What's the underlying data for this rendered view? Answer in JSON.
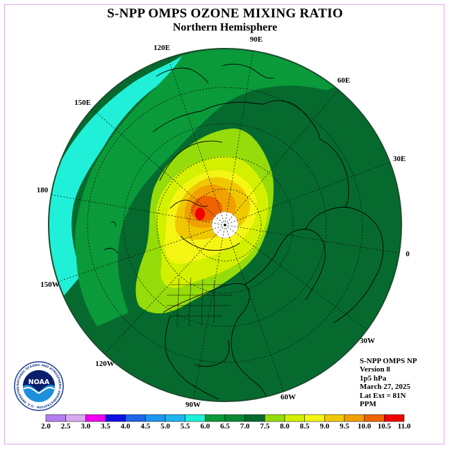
{
  "header": {
    "title": "S-NPP OMPS OZONE MIXING RATIO",
    "subtitle": "Northern Hemisphere"
  },
  "longitude_labels": [
    {
      "id": "lon-90e",
      "text": "90E"
    },
    {
      "id": "lon-60e",
      "text": "60E"
    },
    {
      "id": "lon-30e",
      "text": "30E"
    },
    {
      "id": "lon-0",
      "text": "0"
    },
    {
      "id": "lon-30w",
      "text": "30W"
    },
    {
      "id": "lon-60w",
      "text": "60W"
    },
    {
      "id": "lon-90w",
      "text": "90W"
    },
    {
      "id": "lon-120w",
      "text": "120W"
    },
    {
      "id": "lon-150w",
      "text": "150W"
    },
    {
      "id": "lon-180",
      "text": "180"
    },
    {
      "id": "lon-150e",
      "text": "150E"
    },
    {
      "id": "lon-120e",
      "text": "120E"
    }
  ],
  "info": {
    "instrument": "S-NPP OMPS NP",
    "version": "Version 8",
    "level": "1p5 hPa",
    "date": "March 27, 2025",
    "lat_ext": "Lat Ext = 81N",
    "units": "PPM"
  },
  "legend": {
    "ticks": [
      "2.0",
      "2.5",
      "3.0",
      "3.5",
      "4.0",
      "4.5",
      "5.0",
      "5.5",
      "6.0",
      "6.5",
      "7.0",
      "7.5",
      "8.0",
      "8.5",
      "9.0",
      "9.5",
      "10.0",
      "10.5",
      "11.0"
    ],
    "colors": [
      "#b57ef0",
      "#d8a8f0",
      "#f000f0",
      "#1010e0",
      "#1e64e6",
      "#1e96f0",
      "#20b4f0",
      "#20f0d8",
      "#0a9a3a",
      "#088a36",
      "#066a2e",
      "#96dc0a",
      "#d2f000",
      "#f5f514",
      "#f0c800",
      "#f0a000",
      "#f06400",
      "#f00000",
      "#8b5a3c"
    ]
  },
  "logo": {
    "name": "NOAA",
    "ring_text": "NATIONAL OCEANIC AND ATMOSPHERIC ADMINISTRATION · U.S. DEPARTMENT OF COMMERCE"
  },
  "map_colors": {
    "ocean_edge_cyan": "#20f0d8",
    "teal": "#1aa85a",
    "mid_green": "#088a36",
    "dark_green": "#066a2e",
    "lime": "#96dc0a",
    "yellow_green": "#d2f000",
    "yellow": "#f5f514",
    "gold": "#f0c800",
    "orange": "#f0a000",
    "dark_orange": "#f06400",
    "red": "#f00000"
  }
}
